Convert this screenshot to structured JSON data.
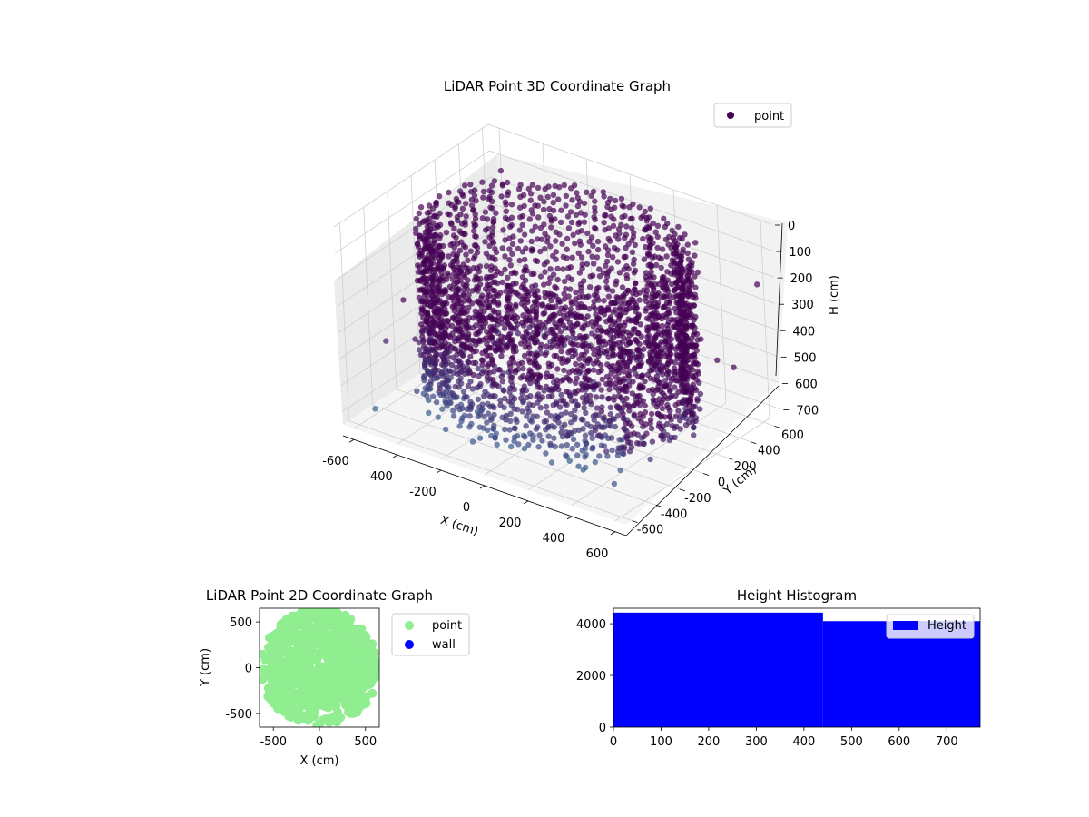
{
  "chart_data": [
    {
      "type": "scatter",
      "projection": "3d",
      "title": "LiDAR Point 3D Coordinate Graph",
      "xlabel": "X (cm)",
      "ylabel": "Y (cm)",
      "zlabel": "H (cm)",
      "xlim": [
        -650,
        650
      ],
      "ylim": [
        -650,
        650
      ],
      "zlim": [
        750,
        0
      ],
      "x_ticks": [
        "-600",
        "-400",
        "-200",
        "0",
        "200",
        "400",
        "600"
      ],
      "y_ticks": [
        "-600",
        "-400",
        "-200",
        "0",
        "200",
        "400",
        "600"
      ],
      "z_ticks": [
        "0",
        "100",
        "200",
        "300",
        "400",
        "500",
        "600",
        "700"
      ],
      "grid": true,
      "legend": "top-right",
      "series": [
        {
          "name": "point",
          "color": "#440154",
          "colormap": "viridis"
        }
      ]
    },
    {
      "type": "scatter",
      "title": "LiDAR Point 2D Coordinate Graph",
      "xlabel": "X (cm)",
      "ylabel": "Y (cm)",
      "xlim": [
        -650,
        650
      ],
      "ylim": [
        -650,
        650
      ],
      "x_ticks": [
        "-500",
        "0",
        "500"
      ],
      "y_ticks": [
        "500",
        "0",
        "-500"
      ],
      "legend": "outside-right",
      "series": [
        {
          "name": "point",
          "color": "#90ee90"
        },
        {
          "name": "wall",
          "color": "#0000ff"
        }
      ]
    },
    {
      "type": "bar",
      "title": "Height Histogram",
      "xlim": [
        0,
        770
      ],
      "ylim": [
        0,
        4600
      ],
      "x_ticks": [
        "0",
        "100",
        "200",
        "300",
        "400",
        "500",
        "600",
        "700"
      ],
      "y_ticks": [
        "0",
        "2000",
        "4000"
      ],
      "bins": [
        {
          "start": 0,
          "end": 440,
          "value": 4430
        },
        {
          "start": 440,
          "end": 770,
          "value": 4100
        }
      ],
      "legend": "top-right",
      "series": [
        {
          "name": "Height",
          "color": "#0000ff"
        }
      ]
    }
  ]
}
